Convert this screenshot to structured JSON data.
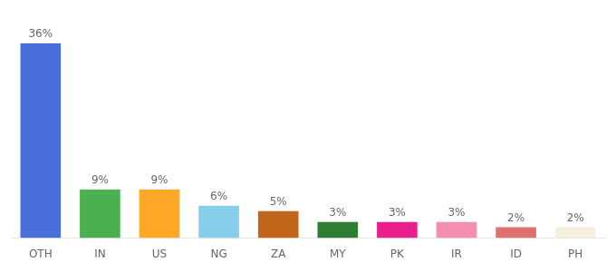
{
  "chart_data": {
    "type": "bar",
    "categories": [
      "OTH",
      "IN",
      "US",
      "NG",
      "ZA",
      "MY",
      "PK",
      "IR",
      "ID",
      "PH"
    ],
    "values": [
      36,
      9,
      9,
      6,
      5,
      3,
      3,
      3,
      2,
      2
    ],
    "value_labels": [
      "36%",
      "9%",
      "9%",
      "6%",
      "5%",
      "3%",
      "3%",
      "3%",
      "2%",
      "2%"
    ],
    "colors": [
      "#4a6fdc",
      "#4caf50",
      "#ffa726",
      "#87ceeb",
      "#c0651a",
      "#2e7d32",
      "#e91e8c",
      "#f48fb1",
      "#e07070",
      "#f5f0dc"
    ],
    "ylim": [
      0,
      40
    ],
    "grid": false,
    "data_labels": true,
    "tick_labels": "x"
  }
}
